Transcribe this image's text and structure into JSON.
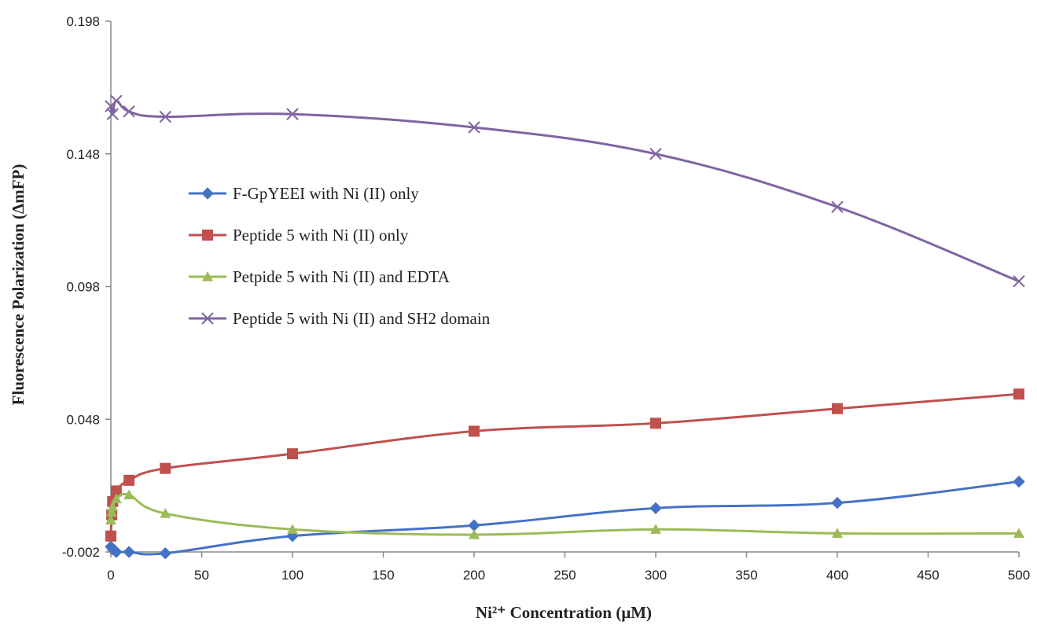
{
  "chart_data": {
    "type": "line",
    "xlabel": "Ni²⁺ Concentration (μM)",
    "ylabel": "Fluorescence Polarization (ΔmFP)",
    "xlim": [
      0,
      500
    ],
    "ylim": [
      -0.002,
      0.198
    ],
    "x_ticks": [
      0,
      50,
      100,
      150,
      200,
      250,
      300,
      350,
      400,
      450,
      500
    ],
    "y_ticks": [
      -0.002,
      0.048,
      0.098,
      0.148,
      0.198
    ],
    "x_tick_labels": [
      "0",
      "50",
      "100",
      "150",
      "200",
      "250",
      "300",
      "350",
      "400",
      "450",
      "500"
    ],
    "y_tick_labels": [
      "-0.002",
      "0.048",
      "0.098",
      "0.148",
      "0.198"
    ],
    "grid": false,
    "legend_position": "center-left",
    "series": [
      {
        "name": "F-GpYEEI with Ni (II) only",
        "color": "#4472C4",
        "marker": "diamond",
        "x": [
          0,
          1,
          3,
          10,
          30,
          100,
          200,
          300,
          400,
          500
        ],
        "y": [
          0.0,
          -0.001,
          -0.002,
          -0.002,
          -0.0025,
          0.004,
          0.008,
          0.0145,
          0.0165,
          0.0245
        ]
      },
      {
        "name": "Peptide 5 with Ni (II) only",
        "color": "#C0504D",
        "marker": "square",
        "x": [
          0,
          0.5,
          1,
          3,
          10,
          30,
          100,
          200,
          300,
          400,
          500
        ],
        "y": [
          0.004,
          0.012,
          0.017,
          0.021,
          0.025,
          0.0295,
          0.035,
          0.0435,
          0.0465,
          0.052,
          0.0575
        ]
      },
      {
        "name": "Petpide 5 with Ni (II) and EDTA",
        "color": "#9BBB59",
        "marker": "triangle",
        "x": [
          0,
          0.5,
          1,
          3,
          10,
          30,
          100,
          200,
          300,
          400,
          500
        ],
        "y": [
          0.01,
          0.013,
          0.015,
          0.018,
          0.0195,
          0.0125,
          0.0065,
          0.0045,
          0.0065,
          0.005,
          0.005
        ]
      },
      {
        "name": "Peptide 5 with Ni (II) and SH2 domain",
        "color": "#8064A2",
        "marker": "x",
        "x": [
          0,
          1,
          3,
          10,
          30,
          100,
          200,
          300,
          400,
          500
        ],
        "y": [
          0.166,
          0.163,
          0.168,
          0.164,
          0.162,
          0.163,
          0.158,
          0.148,
          0.128,
          0.1
        ]
      }
    ]
  }
}
